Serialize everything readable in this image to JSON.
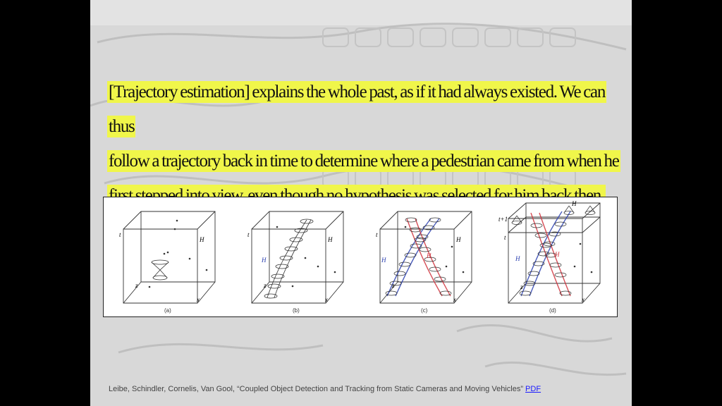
{
  "slide": {
    "quote_lines": [
      "[Trajectory estimation] explains the whole past, as if it had always existed. We can thus",
      "follow a trajectory back in time to determine where a pedestrian came from when he",
      "first stepped into view, even though no hypothesis was selected for him back then."
    ],
    "figure": {
      "captions": [
        "(a)",
        "(b)",
        "(c)",
        "(d)"
      ],
      "panel_labels": {
        "a": [
          "H",
          "t",
          "x",
          "z"
        ],
        "b": [
          "H",
          "H",
          "t",
          "x",
          "z"
        ],
        "c": [
          "H",
          "H",
          "H",
          "t",
          "x",
          "z"
        ],
        "d": [
          "H",
          "H",
          "H",
          "t+1",
          "t",
          "x",
          "z"
        ]
      },
      "colors": {
        "hyp1": "#2a3fb0",
        "hyp2": "#d0303a",
        "line": "#333333"
      }
    },
    "citation": {
      "text": "Leibe, Schindler, Cornelis, Van Gool, “Coupled Object Detection and Tracking from Static Cameras and Moving Vehicles”",
      "link": "PDF"
    }
  }
}
